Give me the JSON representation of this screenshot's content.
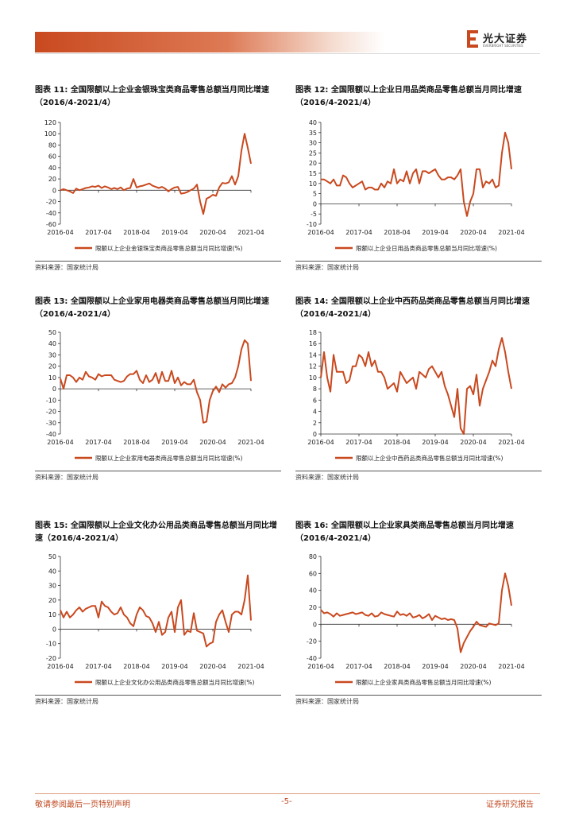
{
  "header": {
    "logo_text": "光大证券",
    "logo_sub": "EVERBRIGHT SECURITIES",
    "brand_color": "#c9491f"
  },
  "panels": [
    {
      "title": "图表 11: 全国限额以上企业金银珠宝类商品零售总额当月同比增速（2016/4-2021/4）",
      "source": "资料来源：国家统计局"
    },
    {
      "title": "图表 12: 全国限额以上企业日用品类商品零售总额当月同比增速（2016/4-2021/4）",
      "source": "资料来源：国家统计局"
    },
    {
      "title": "图表 13: 全国限额以上企业家用电器类商品零售总额当月同比增速（2016/4-2021/4）",
      "source": "资料来源：国家统计局"
    },
    {
      "title": "图表 14: 全国限额以上企业中西药品类商品零售总额当月同比增速（2016/4-2021/4）",
      "source": "资料来源：国家统计局"
    },
    {
      "title": "图表 15: 全国限额以上企业文化办公用品类商品零售总额当月同比增速（2016/4-2021/4）",
      "source": "资料来源：国家统计局"
    },
    {
      "title": "图表 16: 全国限额以上企业家具类商品零售总额当月同比增速（2016/4-2021/4）",
      "source": "资料来源：国家统计局"
    }
  ],
  "chart_data": [
    {
      "type": "line",
      "line_color": "#c9491f",
      "x_start": "2016-04",
      "x_end": "2021-04",
      "xticks": [
        "2016-04",
        "2017-04",
        "2018-04",
        "2019-04",
        "2020-04",
        "2021-04"
      ],
      "ylim": [
        -60,
        120
      ],
      "ystep": 20,
      "series": [
        {
          "name": "限额以上企业金银珠宝类商品零售总额当月同比增速(%)",
          "values": [
            0,
            2,
            0,
            -2,
            -5,
            3,
            0,
            2,
            4,
            5,
            7,
            6,
            8,
            4,
            7,
            5,
            2,
            4,
            2,
            5,
            0,
            3,
            4,
            20,
            5,
            7,
            8,
            10,
            12,
            8,
            6,
            4,
            6,
            3,
            -2,
            2,
            5,
            6,
            -6,
            -5,
            -3,
            0,
            3,
            10,
            -20,
            -42,
            -15,
            -12,
            -8,
            -10,
            5,
            13,
            12,
            14,
            25,
            10,
            25,
            70,
            100,
            75,
            47
          ]
        }
      ]
    },
    {
      "type": "line",
      "line_color": "#c9491f",
      "x_start": "2016-04",
      "x_end": "2021-04",
      "xticks": [
        "2016-04",
        "2017-04",
        "2018-04",
        "2019-04",
        "2020-04",
        "2021-04"
      ],
      "ylim": [
        -10,
        40
      ],
      "ystep": 5,
      "series": [
        {
          "name": "限额以上企业日用品类商品零售总额当月同比增速(%)",
          "values": [
            12,
            12,
            11,
            10,
            12,
            9,
            9,
            14,
            13,
            10,
            8,
            9,
            10,
            11,
            7,
            8,
            8,
            7,
            7,
            10,
            8,
            11,
            10,
            17,
            10,
            12,
            11,
            16,
            10,
            15,
            17,
            10,
            16,
            16,
            15,
            16,
            17,
            14,
            12,
            12,
            13,
            13,
            12,
            14,
            17,
            1,
            -6,
            1,
            5,
            17,
            17,
            8,
            11,
            10,
            12,
            8,
            9,
            25,
            35,
            30,
            17
          ]
        }
      ]
    },
    {
      "type": "line",
      "line_color": "#c9491f",
      "x_start": "2016-04",
      "x_end": "2021-04",
      "xticks": [
        "2016-04",
        "2017-04",
        "2018-04",
        "2019-04",
        "2020-04",
        "2021-04"
      ],
      "ylim": [
        -40,
        50
      ],
      "ystep": 10,
      "series": [
        {
          "name": "限额以上企业家用电器类商品零售总额当月同比增速(%)",
          "values": [
            9,
            0,
            12,
            12,
            10,
            6,
            10,
            8,
            15,
            11,
            10,
            8,
            13,
            11,
            12,
            12,
            12,
            8,
            7,
            6,
            7,
            11,
            13,
            13,
            16,
            8,
            5,
            12,
            6,
            8,
            14,
            5,
            15,
            7,
            7,
            16,
            5,
            10,
            3,
            6,
            4,
            4,
            8,
            -3,
            -10,
            -30,
            -29,
            -10,
            -2,
            2,
            -3,
            4,
            1,
            4,
            5,
            10,
            20,
            35,
            43,
            40,
            7
          ]
        }
      ]
    },
    {
      "type": "line",
      "line_color": "#c9491f",
      "x_start": "2016-04",
      "x_end": "2021-04",
      "xticks": [
        "2016-04",
        "2017-04",
        "2018-04",
        "2019-04",
        "2020-04",
        "2021-04"
      ],
      "ylim": [
        0,
        18
      ],
      "ystep": 2,
      "series": [
        {
          "name": "限额以上企业中西药品类商品零售总额当月同比增速(%)",
          "values": [
            10,
            14.5,
            10,
            7.5,
            14,
            11,
            11,
            11,
            9,
            9.5,
            12,
            12,
            14,
            13.5,
            12,
            14.5,
            12,
            13,
            11,
            11,
            10,
            8,
            8.5,
            9,
            7.5,
            11,
            10,
            9,
            9.5,
            10,
            8,
            11,
            10.5,
            10,
            11.5,
            12,
            11,
            10,
            11,
            8.5,
            7,
            5,
            3,
            8,
            1,
            0,
            8,
            8.5,
            7,
            10.5,
            5,
            8,
            9.5,
            11,
            13,
            12,
            15,
            17,
            14.5,
            11,
            8
          ]
        }
      ]
    },
    {
      "type": "line",
      "line_color": "#c9491f",
      "x_start": "2016-04",
      "x_end": "2021-04",
      "xticks": [
        "2016-04",
        "2017-04",
        "2018-04",
        "2019-04",
        "2020-04",
        "2021-04"
      ],
      "ylim": [
        -20,
        50
      ],
      "ystep": 10,
      "series": [
        {
          "name": "限额以上企业文化办公用品类商品零售总额当月同比增速(%)",
          "values": [
            13,
            8,
            12,
            8,
            10,
            13,
            15,
            12,
            14,
            15,
            16,
            16,
            8,
            19,
            16,
            15,
            12,
            10,
            11,
            15,
            10,
            8,
            4,
            2,
            10,
            15,
            13,
            9,
            8,
            4,
            -2,
            5,
            -4,
            -2,
            8,
            12,
            -2,
            15,
            20,
            -4,
            -1,
            -2,
            11,
            -1,
            -2,
            -3,
            -12,
            -10,
            -9,
            5,
            10,
            13,
            5,
            -2,
            10,
            12,
            12,
            10,
            20,
            37,
            6
          ]
        }
      ]
    },
    {
      "type": "line",
      "line_color": "#c9491f",
      "x_start": "2016-04",
      "x_end": "2021-04",
      "xticks": [
        "2016-04",
        "2017-04",
        "2018-04",
        "2019-04",
        "2020-04",
        "2021-04"
      ],
      "ylim": [
        -40,
        80
      ],
      "ystep": 20,
      "series": [
        {
          "name": "限额以上企业家具类商品零售总额当月同比增速(%)",
          "values": [
            17,
            13,
            14,
            12,
            9,
            13,
            10,
            11,
            12,
            13,
            14,
            12,
            13,
            14,
            11,
            10,
            13,
            9,
            10,
            14,
            12,
            11,
            10,
            9,
            15,
            11,
            12,
            10,
            13,
            8,
            9,
            11,
            7,
            9,
            12,
            5,
            10,
            8,
            6,
            7,
            5,
            6,
            5,
            -5,
            -33,
            -22,
            -15,
            -8,
            -3,
            3,
            -1,
            -2,
            -3,
            1,
            0,
            -1,
            1,
            40,
            60,
            45,
            22
          ]
        }
      ]
    }
  ],
  "footer": {
    "left": "敬请参阅最后一页特别声明",
    "center": "-5-",
    "right": "证券研究报告"
  }
}
